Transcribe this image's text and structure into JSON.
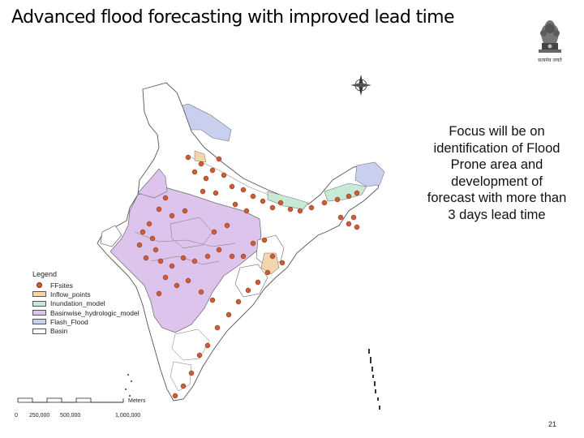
{
  "title": "Advanced flood forecasting with improved lead time",
  "emblem_text": "सत्यमेव जयते",
  "focus_text": "Focus will be on identification of Flood Prone area and development of forecast with more than 3 days lead time",
  "legend": {
    "title": "Legend",
    "items": [
      {
        "label": "FFsites",
        "color": "#cd5c36",
        "kind": "point"
      },
      {
        "label": "Inflow_points",
        "color": "#f3d6ad",
        "kind": "area"
      },
      {
        "label": "Inundation_model",
        "color": "#c6ead6",
        "kind": "area"
      },
      {
        "label": "Basinwise_hydrologic_model",
        "color": "#dcc4ec",
        "kind": "area"
      },
      {
        "label": "Flash_Flood",
        "color": "#c8d0ee",
        "kind": "area"
      },
      {
        "label": "Basin",
        "color": "#ffffff",
        "kind": "area"
      }
    ]
  },
  "scale": {
    "labels": [
      "0",
      "250,000",
      "500,000",
      "1,000,000"
    ],
    "unit": "Meters"
  },
  "page_number": "21"
}
